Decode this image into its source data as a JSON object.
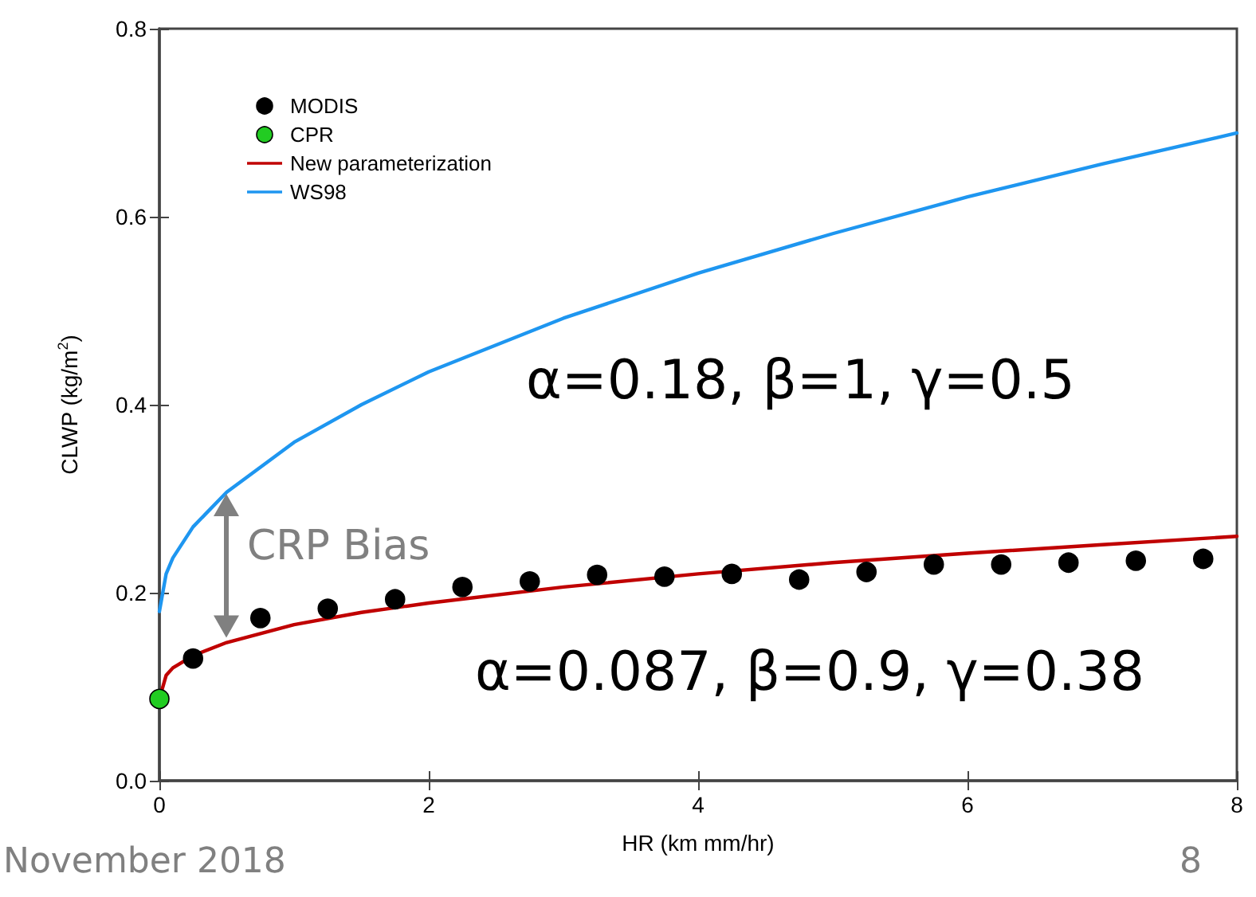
{
  "chart_data": {
    "type": "scatter",
    "xlabel": "HR (km mm/hr)",
    "ylabel": "CLWP (kg/m$^{2}$)",
    "xlim": [
      0,
      8
    ],
    "xticks": [
      0,
      2,
      4,
      6,
      8
    ],
    "ylim": [
      0,
      0.8
    ],
    "yticks": [
      {
        "value": 0,
        "label": "0.0"
      },
      0.2,
      0.4,
      0.6,
      0.8
    ],
    "grid": false,
    "legend": "top left",
    "series": [
      {
        "name": "MODIS",
        "marker": "circle",
        "color": "#000000",
        "x": [
          0.25,
          0.75,
          1.25,
          1.75,
          2.25,
          2.75,
          3.25,
          3.75,
          4.25,
          4.75,
          5.25,
          5.75,
          6.25,
          6.75,
          7.25,
          7.75
        ],
        "values": [
          0.13,
          0.173,
          0.183,
          0.193,
          0.206,
          0.212,
          0.219,
          0.217,
          0.22,
          0.214,
          0.222,
          0.23,
          0.23,
          0.232,
          0.234,
          0.236
        ]
      },
      {
        "name": "CPR",
        "marker": "circle",
        "color": "#22cc22",
        "x": [
          0
        ],
        "values": [
          0.087
        ]
      },
      {
        "name": "New parameterization",
        "type": "line",
        "marker": "none",
        "line_style": "solid",
        "color": "#c00000",
        "x": [
          0,
          0.05,
          0.1,
          0.25,
          0.5,
          1,
          1.5,
          2,
          3,
          4,
          5,
          6,
          7,
          8
        ],
        "values": [
          0.087,
          0.112,
          0.12,
          0.133,
          0.147,
          0.166,
          0.179,
          0.189,
          0.206,
          0.22,
          0.232,
          0.242,
          0.251,
          0.26
        ]
      },
      {
        "name": "WS98",
        "type": "line",
        "marker": "none",
        "line_style": "solid",
        "color": "#1e96f0",
        "x": [
          0,
          0.05,
          0.1,
          0.25,
          0.5,
          1,
          1.5,
          2,
          3,
          4,
          5,
          6,
          7,
          8
        ],
        "values": [
          0.18,
          0.22,
          0.237,
          0.27,
          0.307,
          0.36,
          0.4,
          0.435,
          0.492,
          0.54,
          0.582,
          0.621,
          0.656,
          0.689
        ]
      }
    ],
    "annotations": [
      "α=0.18, β=1, γ=0.5",
      "α=0.087, β=0.9, γ=0.38",
      "CRP Bias",
      "November 2018",
      "8"
    ]
  }
}
